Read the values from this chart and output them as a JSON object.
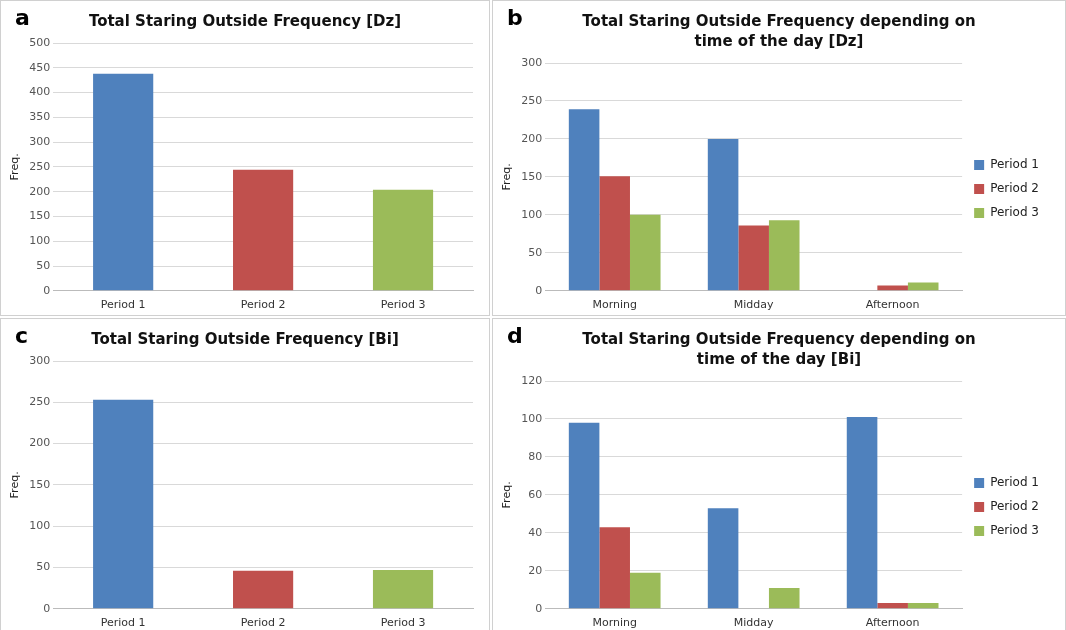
{
  "chart_data": [
    {
      "type": "bar",
      "title": "Total Staring Outside Frequency [Dz]",
      "annotations": [
        "a"
      ],
      "ylabel": "Freq.",
      "categories": [
        "Period 1",
        "Period 2",
        "Period 3"
      ],
      "values": [
        438,
        244,
        204
      ],
      "colors": [
        "#4f81bd",
        "#c0504d",
        "#9bbb59"
      ],
      "ylim": [
        0,
        500
      ],
      "yticks": [
        0,
        50,
        100,
        150,
        200,
        250,
        300,
        350,
        400,
        450,
        500
      ],
      "grid": "y",
      "legend": false
    },
    {
      "type": "bar",
      "title": "Total Staring Outside Frequency depending on time of the day [Dz]",
      "annotations": [
        "b"
      ],
      "ylabel": "Freq.",
      "categories": [
        "Morning",
        "Midday",
        "Afternoon"
      ],
      "series": [
        {
          "name": "Period 1",
          "color": "#4f81bd",
          "values": [
            239,
            200,
            0
          ]
        },
        {
          "name": "Period 2",
          "color": "#c0504d",
          "values": [
            151,
            86,
            7
          ]
        },
        {
          "name": "Period 3",
          "color": "#9bbb59",
          "values": [
            100,
            93,
            11
          ]
        }
      ],
      "ylim": [
        0,
        300
      ],
      "yticks": [
        0,
        50,
        100,
        150,
        200,
        250,
        300
      ],
      "grid": "y",
      "legend": "right"
    },
    {
      "type": "bar",
      "title": "Total Staring Outside Frequency [Bi]",
      "annotations": [
        "c"
      ],
      "ylabel": "Freq.",
      "categories": [
        "Period 1",
        "Period 2",
        "Period 3"
      ],
      "values": [
        253,
        46,
        47
      ],
      "colors": [
        "#4f81bd",
        "#c0504d",
        "#9bbb59"
      ],
      "ylim": [
        0,
        300
      ],
      "yticks": [
        0,
        50,
        100,
        150,
        200,
        250,
        300
      ],
      "grid": "y",
      "legend": false
    },
    {
      "type": "bar",
      "title": "Total Staring Outside Frequency depending on time of the day [Bi]",
      "annotations": [
        "d"
      ],
      "ylabel": "Freq.",
      "categories": [
        "Morning",
        "Midday",
        "Afternoon"
      ],
      "series": [
        {
          "name": "Period 1",
          "color": "#4f81bd",
          "values": [
            98,
            53,
            101
          ]
        },
        {
          "name": "Period 2",
          "color": "#c0504d",
          "values": [
            43,
            0,
            3
          ]
        },
        {
          "name": "Period 3",
          "color": "#9bbb59",
          "values": [
            19,
            11,
            3
          ]
        }
      ],
      "ylim": [
        0,
        120
      ],
      "yticks": [
        0,
        20,
        40,
        60,
        80,
        100,
        120
      ],
      "grid": "y",
      "legend": "right"
    }
  ]
}
